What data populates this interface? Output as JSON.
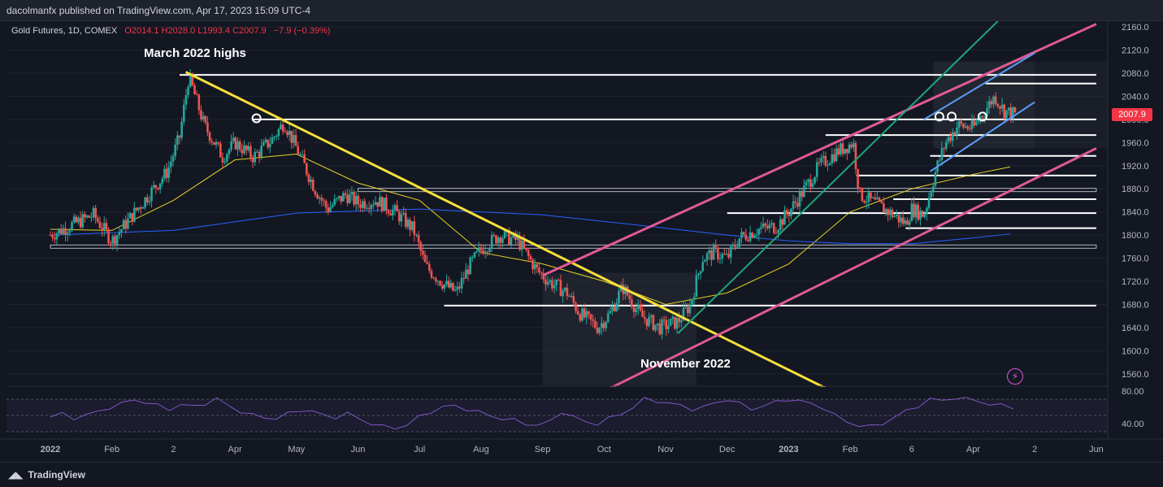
{
  "header": {
    "publisher": "dacolmanfx published on TradingView.com, Apr 17, 2023 15:09 UTC-4"
  },
  "legend": {
    "symbol": "Gold Futures, 1D, COMEX",
    "open": "O2014.1",
    "high": "H2028.0",
    "low": "L1993.4",
    "close": "C2007.9",
    "change": "−7.9 (−0.39%)"
  },
  "annotations": {
    "highs": "March 2022 highs",
    "low": "November 2022"
  },
  "last_price": "2007.9",
  "footer": {
    "brand": "TradingView"
  },
  "colors": {
    "background": "#131722",
    "up": "#26a69a",
    "down": "#ef5350",
    "ma_fast": "#e5d427",
    "ma_slow": "#2962ff",
    "channel": "#e05a94",
    "trendline": "#f5e03a",
    "rsi": "#7e57c2",
    "inner_channel": "#5b9cf5",
    "steep_line": "#1ea67a"
  },
  "chart_data": {
    "type": "candlestick",
    "y_axis": {
      "ylim": [
        1540,
        2170
      ],
      "ticks": [
        "2160.0",
        "2120.0",
        "2080.0",
        "2040.0",
        "2000.0",
        "1960.0",
        "1920.0",
        "1880.0",
        "1840.0",
        "1800.0",
        "1760.0",
        "1720.0",
        "1680.0",
        "1640.0",
        "1600.0",
        "1560.0"
      ]
    },
    "x_axis": {
      "ticks": [
        {
          "label": "2022",
          "month_index": 0,
          "bold": true
        },
        {
          "label": "Feb",
          "month_index": 1
        },
        {
          "label": "2",
          "month_index": 2
        },
        {
          "label": "Apr",
          "month_index": 3
        },
        {
          "label": "May",
          "month_index": 4
        },
        {
          "label": "Jun",
          "month_index": 5
        },
        {
          "label": "Jul",
          "month_index": 6
        },
        {
          "label": "Aug",
          "month_index": 7
        },
        {
          "label": "Sep",
          "month_index": 8
        },
        {
          "label": "Oct",
          "month_index": 9
        },
        {
          "label": "Nov",
          "month_index": 10
        },
        {
          "label": "Dec",
          "month_index": 11
        },
        {
          "label": "2023",
          "month_index": 12,
          "bold": true
        },
        {
          "label": "Feb",
          "month_index": 13
        },
        {
          "label": "6",
          "month_index": 14
        },
        {
          "label": "Apr",
          "month_index": 15
        },
        {
          "label": "2",
          "month_index": 16
        },
        {
          "label": "Jun",
          "month_index": 17
        }
      ]
    },
    "price_path": [
      [
        0,
        1800
      ],
      [
        0.3,
        1815
      ],
      [
        0.7,
        1835
      ],
      [
        1.0,
        1790
      ],
      [
        1.3,
        1830
      ],
      [
        1.6,
        1870
      ],
      [
        1.9,
        1910
      ],
      [
        2.1,
        1970
      ],
      [
        2.25,
        2075
      ],
      [
        2.5,
        1990
      ],
      [
        2.8,
        1935
      ],
      [
        3.0,
        1960
      ],
      [
        3.3,
        1935
      ],
      [
        3.6,
        1965
      ],
      [
        3.8,
        1995
      ],
      [
        4.0,
        1950
      ],
      [
        4.3,
        1880
      ],
      [
        4.5,
        1845
      ],
      [
        4.8,
        1870
      ],
      [
        5.0,
        1855
      ],
      [
        5.3,
        1860
      ],
      [
        5.6,
        1840
      ],
      [
        5.9,
        1810
      ],
      [
        6.1,
        1745
      ],
      [
        6.4,
        1715
      ],
      [
        6.6,
        1700
      ],
      [
        6.8,
        1745
      ],
      [
        7.0,
        1775
      ],
      [
        7.3,
        1800
      ],
      [
        7.6,
        1790
      ],
      [
        7.9,
        1740
      ],
      [
        8.1,
        1720
      ],
      [
        8.4,
        1700
      ],
      [
        8.6,
        1665
      ],
      [
        8.9,
        1640
      ],
      [
        9.1,
        1665
      ],
      [
        9.3,
        1710
      ],
      [
        9.6,
        1660
      ],
      [
        9.9,
        1640
      ],
      [
        10.2,
        1650
      ],
      [
        10.4,
        1680
      ],
      [
        10.6,
        1760
      ],
      [
        10.8,
        1770
      ],
      [
        11.0,
        1760
      ],
      [
        11.2,
        1795
      ],
      [
        11.5,
        1810
      ],
      [
        11.8,
        1815
      ],
      [
        12.0,
        1840
      ],
      [
        12.2,
        1870
      ],
      [
        12.5,
        1920
      ],
      [
        12.8,
        1945
      ],
      [
        13.05,
        1960
      ],
      [
        13.15,
        1870
      ],
      [
        13.4,
        1855
      ],
      [
        13.7,
        1835
      ],
      [
        13.9,
        1820
      ],
      [
        14.0,
        1845
      ],
      [
        14.2,
        1835
      ],
      [
        14.4,
        1915
      ],
      [
        14.55,
        1960
      ],
      [
        14.75,
        1990
      ],
      [
        15.0,
        1985
      ],
      [
        15.15,
        2010
      ],
      [
        15.35,
        2040
      ],
      [
        15.5,
        2015
      ],
      [
        15.7,
        2007.9
      ]
    ],
    "moving_averages": [
      {
        "name": "",
        "period": "50",
        "points": [
          [
            0,
            1810
          ],
          [
            1,
            1808
          ],
          [
            2,
            1860
          ],
          [
            3,
            1930
          ],
          [
            4,
            1940
          ],
          [
            5,
            1890
          ],
          [
            6,
            1860
          ],
          [
            7,
            1770
          ],
          [
            8,
            1750
          ],
          [
            9,
            1720
          ],
          [
            10,
            1680
          ],
          [
            11,
            1700
          ],
          [
            12,
            1750
          ],
          [
            13,
            1840
          ],
          [
            14,
            1880
          ],
          [
            15,
            1905
          ],
          [
            15.6,
            1918
          ]
        ]
      },
      {
        "name": "",
        "period": "200",
        "points": [
          [
            0,
            1800
          ],
          [
            2,
            1808
          ],
          [
            4,
            1838
          ],
          [
            6,
            1845
          ],
          [
            8,
            1835
          ],
          [
            10,
            1812
          ],
          [
            11,
            1800
          ],
          [
            12,
            1790
          ],
          [
            13,
            1785
          ],
          [
            14,
            1785
          ],
          [
            15,
            1795
          ],
          [
            15.6,
            1802
          ]
        ]
      }
    ],
    "horizontal_levels": [
      {
        "value": 2077,
        "from": 2.1,
        "to": 17.0,
        "color": "white"
      },
      {
        "value": 2062,
        "from": 15.2,
        "to": 17.0,
        "color": "white"
      },
      {
        "value": 2000,
        "from": 3.3,
        "to": 17.0,
        "color": "white"
      },
      {
        "value": 1973,
        "from": 12.6,
        "to": 17.0,
        "color": "white"
      },
      {
        "value": 1937,
        "from": 14.3,
        "to": 17.0,
        "color": "white"
      },
      {
        "value": 1903,
        "from": 13.1,
        "to": 17.0,
        "color": "white"
      },
      {
        "value": 1878,
        "from": 5.0,
        "to": 17.0,
        "color": "gray"
      },
      {
        "value": 1862,
        "from": 13.7,
        "to": 17.0,
        "color": "white"
      },
      {
        "value": 1838,
        "from": 11.0,
        "to": 17.0,
        "color": "white"
      },
      {
        "value": 1812,
        "from": 13.9,
        "to": 17.0,
        "color": "white"
      },
      {
        "value": 1780,
        "from": 0.0,
        "to": 17.0,
        "color": "gray"
      },
      {
        "value": 1678,
        "from": 6.4,
        "to": 17.0,
        "color": "white"
      }
    ],
    "trendlines": [
      {
        "name": "yellow-downtrend",
        "from": [
          2.2,
          2082
        ],
        "to": [
          12.7,
          1530
        ],
        "color": "trendline"
      },
      {
        "name": "channel-upper",
        "from": [
          8.0,
          1730
        ],
        "to": [
          17.0,
          2165
        ],
        "color": "channel"
      },
      {
        "name": "channel-lower",
        "from": [
          9.0,
          1530
        ],
        "to": [
          17.0,
          1950
        ],
        "color": "channel"
      },
      {
        "name": "steep-green",
        "from": [
          10.2,
          1630
        ],
        "to": [
          15.4,
          2170
        ],
        "color": "steep_line"
      },
      {
        "name": "inner-channel-upper",
        "from": [
          14.2,
          2000
        ],
        "to": [
          16.0,
          2115
        ],
        "color": "inner_channel"
      },
      {
        "name": "inner-channel-lower",
        "from": [
          14.3,
          1910
        ],
        "to": [
          16.0,
          2030
        ],
        "color": "inner_channel"
      }
    ],
    "markers": [
      {
        "x": 3.35,
        "y": 2002
      },
      {
        "x": 14.45,
        "y": 2005
      },
      {
        "x": 14.65,
        "y": 2005
      },
      {
        "x": 15.15,
        "y": 2005
      }
    ],
    "rsi": {
      "ylim": [
        25,
        85
      ],
      "ticks": [
        "80.00",
        "40.00"
      ],
      "bands": [
        70,
        50,
        30
      ],
      "values": [
        48,
        52,
        47,
        50,
        55,
        60,
        64,
        70,
        66,
        62,
        58,
        63,
        61,
        65,
        70,
        62,
        55,
        50,
        48,
        46,
        52,
        57,
        55,
        50,
        48,
        52,
        46,
        40,
        36,
        35,
        38,
        48,
        55,
        60,
        62,
        58,
        54,
        50,
        46,
        44,
        40,
        38,
        42,
        55,
        48,
        42,
        40,
        46,
        52,
        60,
        70,
        68,
        65,
        62,
        58,
        60,
        66,
        70,
        64,
        58,
        62,
        66,
        70,
        68,
        64,
        60,
        50,
        42,
        38,
        36,
        40,
        48,
        55,
        62,
        70,
        68,
        72,
        70,
        68,
        64,
        62,
        60
      ]
    }
  }
}
